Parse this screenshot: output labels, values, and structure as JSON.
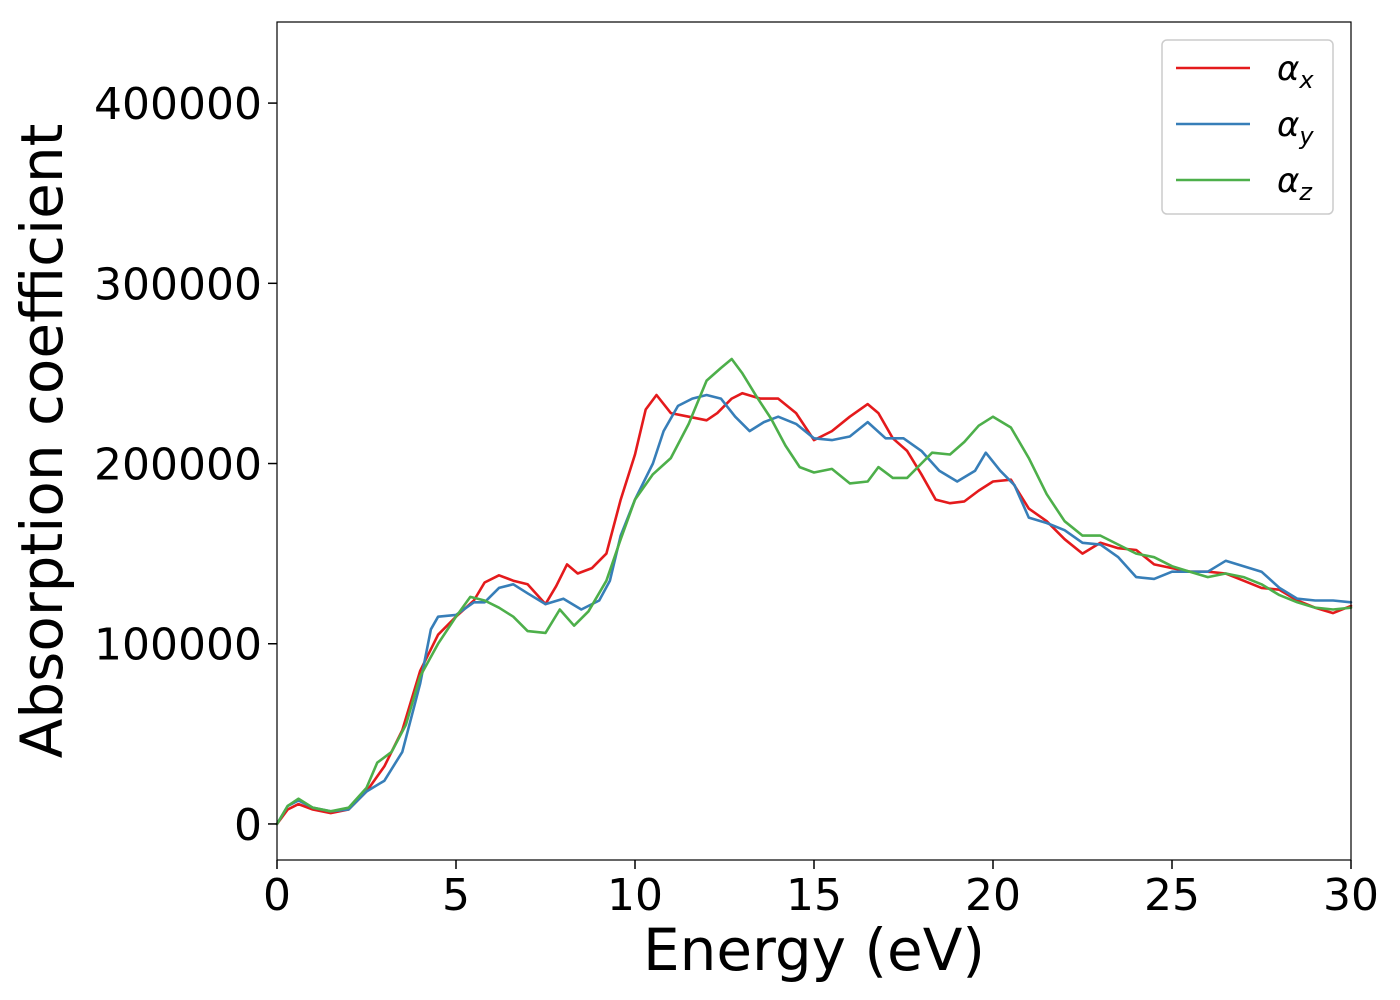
{
  "chart_data": {
    "type": "line",
    "xlabel": "Energy (eV)",
    "ylabel": "Absorption coefficient",
    "xlim": [
      0,
      30
    ],
    "ylim": [
      -20000,
      445000
    ],
    "x_ticks": [
      "0",
      "5",
      "10",
      "15",
      "20",
      "25",
      "30"
    ],
    "y_ticks": [
      "0",
      "100000",
      "200000",
      "300000",
      "400000"
    ],
    "grid": false,
    "legend_position": "top-right",
    "series": [
      {
        "name": "α",
        "subscript": "x",
        "color": "#e41a1c",
        "points": [
          [
            0,
            0
          ],
          [
            0.3,
            8000
          ],
          [
            0.6,
            11000
          ],
          [
            1.0,
            8000
          ],
          [
            1.5,
            6000
          ],
          [
            2.0,
            8000
          ],
          [
            2.5,
            18000
          ],
          [
            3.0,
            32000
          ],
          [
            3.5,
            52000
          ],
          [
            4.0,
            85000
          ],
          [
            4.5,
            105000
          ],
          [
            5.0,
            115000
          ],
          [
            5.5,
            124000
          ],
          [
            5.8,
            134000
          ],
          [
            6.2,
            138000
          ],
          [
            6.6,
            135000
          ],
          [
            7.0,
            133000
          ],
          [
            7.5,
            122000
          ],
          [
            7.8,
            132000
          ],
          [
            8.1,
            144000
          ],
          [
            8.4,
            139000
          ],
          [
            8.8,
            142000
          ],
          [
            9.2,
            150000
          ],
          [
            9.6,
            180000
          ],
          [
            10.0,
            205000
          ],
          [
            10.3,
            230000
          ],
          [
            10.6,
            238000
          ],
          [
            11.0,
            228000
          ],
          [
            11.5,
            226000
          ],
          [
            12.0,
            224000
          ],
          [
            12.3,
            228000
          ],
          [
            12.7,
            236000
          ],
          [
            13.0,
            239000
          ],
          [
            13.5,
            236000
          ],
          [
            14.0,
            236000
          ],
          [
            14.5,
            228000
          ],
          [
            15.0,
            213000
          ],
          [
            15.5,
            218000
          ],
          [
            16.0,
            226000
          ],
          [
            16.5,
            233000
          ],
          [
            16.8,
            228000
          ],
          [
            17.2,
            214000
          ],
          [
            17.6,
            207000
          ],
          [
            18.0,
            194000
          ],
          [
            18.4,
            180000
          ],
          [
            18.8,
            178000
          ],
          [
            19.2,
            179000
          ],
          [
            19.6,
            185000
          ],
          [
            20.0,
            190000
          ],
          [
            20.5,
            191000
          ],
          [
            21.0,
            175000
          ],
          [
            21.5,
            168000
          ],
          [
            22.0,
            158000
          ],
          [
            22.5,
            150000
          ],
          [
            23.0,
            156000
          ],
          [
            23.5,
            153000
          ],
          [
            24.0,
            152000
          ],
          [
            24.5,
            144000
          ],
          [
            25.0,
            142000
          ],
          [
            25.5,
            140000
          ],
          [
            26.0,
            140000
          ],
          [
            26.5,
            139000
          ],
          [
            27.0,
            135000
          ],
          [
            27.5,
            131000
          ],
          [
            28.0,
            130000
          ],
          [
            28.5,
            124000
          ],
          [
            29.0,
            120000
          ],
          [
            29.5,
            117000
          ],
          [
            30.0,
            121000
          ]
        ]
      },
      {
        "name": "α",
        "subscript": "y",
        "color": "#377eb8",
        "points": [
          [
            0,
            0
          ],
          [
            0.3,
            10000
          ],
          [
            0.6,
            13000
          ],
          [
            1.0,
            9000
          ],
          [
            1.5,
            7000
          ],
          [
            2.0,
            8000
          ],
          [
            2.5,
            18000
          ],
          [
            3.0,
            24000
          ],
          [
            3.5,
            40000
          ],
          [
            4.0,
            78000
          ],
          [
            4.3,
            108000
          ],
          [
            4.5,
            115000
          ],
          [
            5.0,
            116000
          ],
          [
            5.5,
            123000
          ],
          [
            5.8,
            123000
          ],
          [
            6.2,
            131000
          ],
          [
            6.6,
            133000
          ],
          [
            7.0,
            128000
          ],
          [
            7.5,
            122000
          ],
          [
            8.0,
            125000
          ],
          [
            8.5,
            119000
          ],
          [
            9.0,
            124000
          ],
          [
            9.3,
            135000
          ],
          [
            9.6,
            160000
          ],
          [
            10.0,
            180000
          ],
          [
            10.5,
            200000
          ],
          [
            10.8,
            218000
          ],
          [
            11.2,
            232000
          ],
          [
            11.6,
            236000
          ],
          [
            12.0,
            238000
          ],
          [
            12.4,
            236000
          ],
          [
            12.8,
            226000
          ],
          [
            13.2,
            218000
          ],
          [
            13.6,
            223000
          ],
          [
            14.0,
            226000
          ],
          [
            14.5,
            222000
          ],
          [
            15.0,
            214000
          ],
          [
            15.5,
            213000
          ],
          [
            16.0,
            215000
          ],
          [
            16.5,
            223000
          ],
          [
            17.0,
            214000
          ],
          [
            17.5,
            214000
          ],
          [
            18.0,
            207000
          ],
          [
            18.5,
            196000
          ],
          [
            19.0,
            190000
          ],
          [
            19.5,
            196000
          ],
          [
            19.8,
            206000
          ],
          [
            20.2,
            196000
          ],
          [
            20.6,
            188000
          ],
          [
            21.0,
            170000
          ],
          [
            21.5,
            167000
          ],
          [
            22.0,
            163000
          ],
          [
            22.5,
            156000
          ],
          [
            23.0,
            155000
          ],
          [
            23.5,
            148000
          ],
          [
            24.0,
            137000
          ],
          [
            24.5,
            136000
          ],
          [
            25.0,
            140000
          ],
          [
            25.5,
            140000
          ],
          [
            26.0,
            140000
          ],
          [
            26.5,
            146000
          ],
          [
            27.0,
            143000
          ],
          [
            27.5,
            140000
          ],
          [
            28.0,
            131000
          ],
          [
            28.5,
            125000
          ],
          [
            29.0,
            124000
          ],
          [
            29.5,
            124000
          ],
          [
            30.0,
            123000
          ]
        ]
      },
      {
        "name": "α",
        "subscript": "z",
        "color": "#4daf4a",
        "points": [
          [
            0,
            0
          ],
          [
            0.3,
            10000
          ],
          [
            0.6,
            14000
          ],
          [
            1.0,
            9000
          ],
          [
            1.5,
            7000
          ],
          [
            2.0,
            9000
          ],
          [
            2.5,
            20000
          ],
          [
            2.8,
            34000
          ],
          [
            3.2,
            40000
          ],
          [
            3.6,
            55000
          ],
          [
            4.0,
            82000
          ],
          [
            4.5,
            100000
          ],
          [
            5.0,
            115000
          ],
          [
            5.4,
            126000
          ],
          [
            5.8,
            124000
          ],
          [
            6.2,
            120000
          ],
          [
            6.6,
            115000
          ],
          [
            7.0,
            107000
          ],
          [
            7.5,
            106000
          ],
          [
            7.9,
            119000
          ],
          [
            8.3,
            110000
          ],
          [
            8.7,
            118000
          ],
          [
            9.2,
            135000
          ],
          [
            9.6,
            158000
          ],
          [
            10.0,
            180000
          ],
          [
            10.5,
            194000
          ],
          [
            11.0,
            203000
          ],
          [
            11.5,
            222000
          ],
          [
            12.0,
            246000
          ],
          [
            12.4,
            253000
          ],
          [
            12.7,
            258000
          ],
          [
            13.0,
            250000
          ],
          [
            13.4,
            237000
          ],
          [
            13.8,
            225000
          ],
          [
            14.2,
            210000
          ],
          [
            14.6,
            198000
          ],
          [
            15.0,
            195000
          ],
          [
            15.5,
            197000
          ],
          [
            16.0,
            189000
          ],
          [
            16.5,
            190000
          ],
          [
            16.8,
            198000
          ],
          [
            17.2,
            192000
          ],
          [
            17.6,
            192000
          ],
          [
            18.0,
            200000
          ],
          [
            18.3,
            206000
          ],
          [
            18.8,
            205000
          ],
          [
            19.2,
            212000
          ],
          [
            19.6,
            221000
          ],
          [
            20.0,
            226000
          ],
          [
            20.5,
            220000
          ],
          [
            21.0,
            203000
          ],
          [
            21.5,
            183000
          ],
          [
            22.0,
            168000
          ],
          [
            22.5,
            160000
          ],
          [
            23.0,
            160000
          ],
          [
            23.5,
            155000
          ],
          [
            24.0,
            150000
          ],
          [
            24.5,
            148000
          ],
          [
            25.0,
            143000
          ],
          [
            25.5,
            140000
          ],
          [
            26.0,
            137000
          ],
          [
            26.5,
            139000
          ],
          [
            27.0,
            137000
          ],
          [
            27.5,
            133000
          ],
          [
            28.0,
            127000
          ],
          [
            28.5,
            123000
          ],
          [
            29.0,
            120000
          ],
          [
            29.5,
            119000
          ],
          [
            30.0,
            120000
          ]
        ]
      }
    ]
  }
}
